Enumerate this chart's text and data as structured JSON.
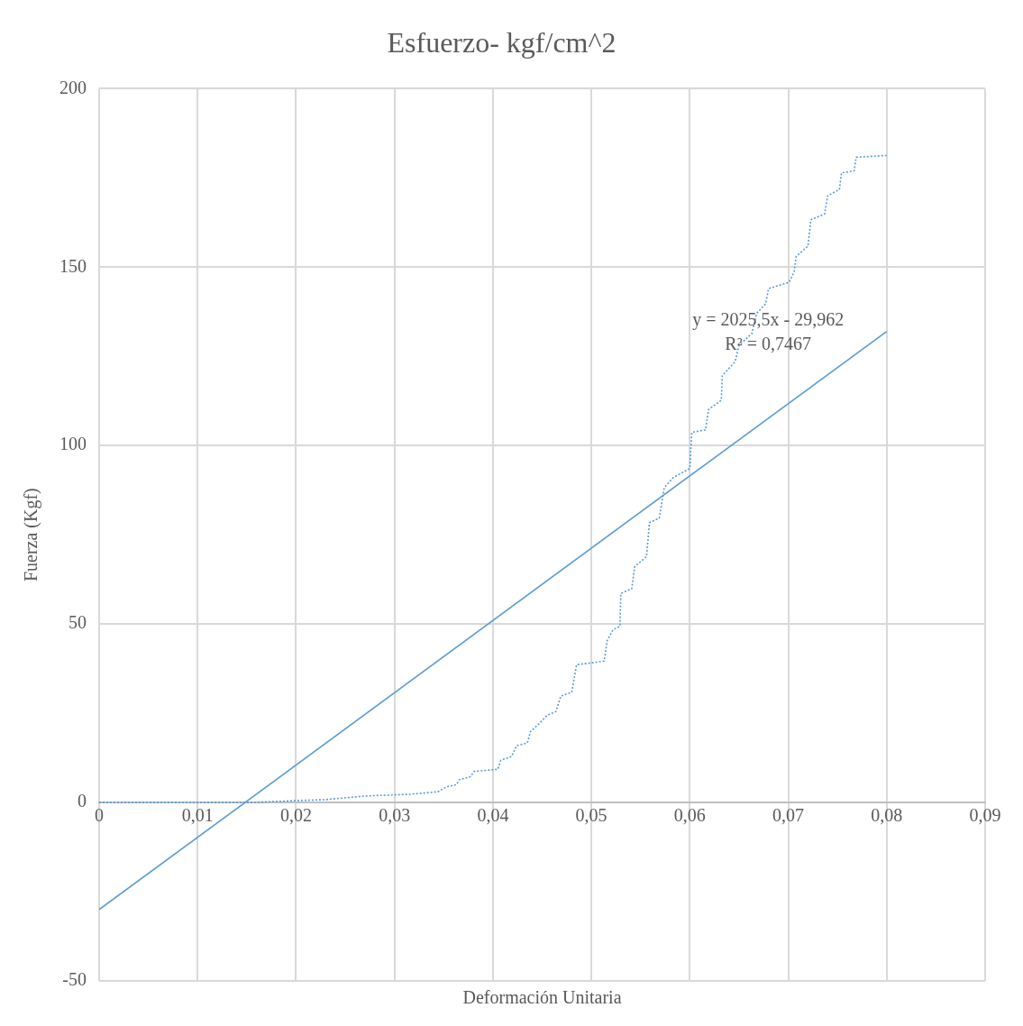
{
  "chart_data": {
    "type": "line",
    "title": "Esfuerzo- kgf/cm^2",
    "xlabel": "Deformación Unitaria",
    "ylabel": "Fuerza (Kgf)",
    "xlim": [
      0,
      0.09
    ],
    "xticks": [
      0,
      {
        "value": 0.01,
        "label": "0,01"
      },
      {
        "value": 0.02,
        "label": "0,02"
      },
      {
        "value": 0.03,
        "label": "0,03"
      },
      {
        "value": 0.04,
        "label": "0,04"
      },
      {
        "value": 0.05,
        "label": "0,05"
      },
      {
        "value": 0.06,
        "label": "0,06"
      },
      {
        "value": 0.07,
        "label": "0,07"
      },
      {
        "value": 0.08,
        "label": "0,08"
      },
      {
        "value": 0.09,
        "label": "0,09"
      }
    ],
    "ylim": [
      -50,
      200
    ],
    "yticks": [
      -50,
      0,
      50,
      100,
      150,
      200
    ],
    "grid": true,
    "legend": false,
    "marker": "none",
    "series": [
      {
        "color": "#5b9bd5",
        "line_style": "dotted",
        "x": [
          0,
          0.0156,
          0.0198,
          0.023,
          0.0269,
          0.0316,
          0.0344,
          0.0353,
          0.0363,
          0.0366,
          0.0377,
          0.0381,
          0.0405,
          0.0408,
          0.0419,
          0.0424,
          0.0435,
          0.0438,
          0.0447,
          0.0455,
          0.0464,
          0.0469,
          0.048,
          0.0485,
          0.0513,
          0.0516,
          0.0522,
          0.0529,
          0.053,
          0.0541,
          0.0544,
          0.0556,
          0.0559,
          0.0569,
          0.0574,
          0.0583,
          0.06,
          0.0602,
          0.0616,
          0.0619,
          0.0632,
          0.0633,
          0.0646,
          0.065,
          0.0663,
          0.0668,
          0.0677,
          0.068,
          0.0701,
          0.0706,
          0.0708,
          0.072,
          0.0723,
          0.0737,
          0.074,
          0.0752,
          0.0754,
          0.0767,
          0.0769,
          0.08
        ],
        "values": [
          0,
          0,
          0.5,
          0.8,
          1.8,
          2.3,
          3,
          4.4,
          5,
          6.4,
          7.2,
          8.7,
          9.3,
          11.8,
          12.9,
          15.9,
          16.7,
          19.8,
          22.1,
          24.4,
          25.5,
          29.8,
          30.9,
          38.6,
          39.6,
          45.3,
          48.4,
          49.4,
          58.6,
          59.9,
          66.1,
          68.9,
          78.4,
          79.7,
          88.2,
          91,
          93.6,
          103.7,
          104.4,
          110.1,
          112.7,
          119.6,
          123.5,
          128.1,
          131.4,
          137.1,
          139.7,
          144,
          145.8,
          148.7,
          153,
          155.9,
          163.3,
          164.9,
          170,
          171.8,
          176.4,
          177,
          180.8,
          181.3
        ]
      },
      {
        "color": "#5b9bd5",
        "line_style": "solid",
        "x": [
          0,
          0.08
        ],
        "values": [
          -30,
          132
        ]
      }
    ],
    "annotations": [
      "y = 2025,5x - 29,962",
      "R² = 0,7467"
    ]
  }
}
